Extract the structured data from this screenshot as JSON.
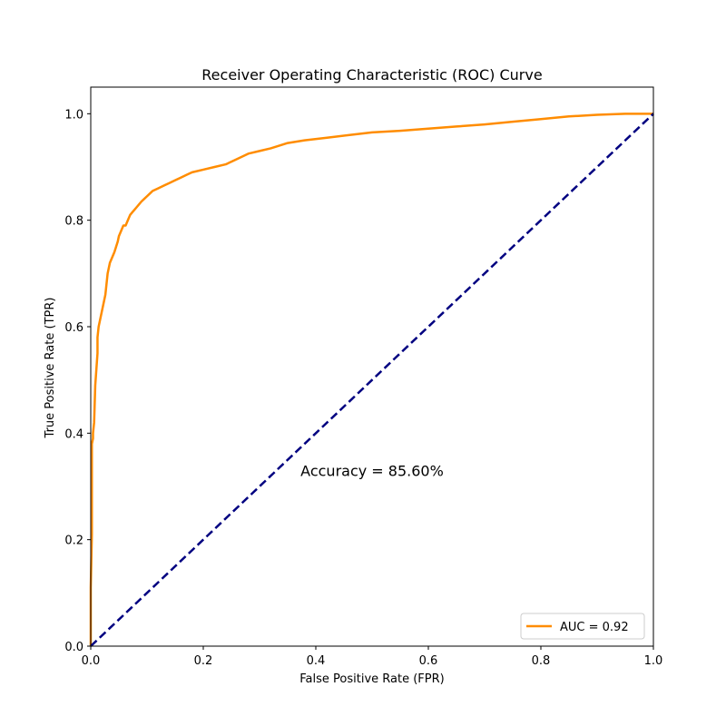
{
  "chart_data": {
    "type": "line",
    "title": "Receiver Operating Characteristic (ROC) Curve",
    "xlabel": "False Positive Rate (FPR)",
    "ylabel": "True Positive Rate (TPR)",
    "xlim": [
      0.0,
      1.0
    ],
    "ylim": [
      0.0,
      1.05
    ],
    "xticks": [
      "0.0",
      "0.2",
      "0.4",
      "0.6",
      "0.8",
      "1.0"
    ],
    "yticks": [
      "0.0",
      "0.2",
      "0.4",
      "0.6",
      "0.8",
      "1.0"
    ],
    "grid": false,
    "legend_position": "lower-right",
    "annotation": {
      "text": "Accuracy = 85.60%",
      "x": 0.5,
      "y": 0.33
    },
    "series": [
      {
        "name": "AUC = 0.92",
        "color": "#ff8c00",
        "style": "solid",
        "x": [
          0,
          0,
          0.002,
          0.002,
          0.004,
          0.004,
          0.006,
          0.008,
          0.01,
          0.012,
          0.012,
          0.014,
          0.016,
          0.018,
          0.02,
          0.022,
          0.024,
          0.026,
          0.03,
          0.034,
          0.038,
          0.042,
          0.045,
          0.048,
          0.05,
          0.054,
          0.058,
          0.062,
          0.066,
          0.07,
          0.074,
          0.078,
          0.082,
          0.086,
          0.09,
          0.095,
          0.1,
          0.105,
          0.11,
          0.12,
          0.13,
          0.14,
          0.15,
          0.16,
          0.17,
          0.18,
          0.2,
          0.22,
          0.24,
          0.26,
          0.28,
          0.3,
          0.32,
          0.35,
          0.38,
          0.42,
          0.46,
          0.5,
          0.55,
          0.6,
          0.65,
          0.7,
          0.75,
          0.8,
          0.85,
          0.9,
          0.95,
          1.0
        ],
        "y": [
          0.0,
          0.11,
          0.21,
          0.38,
          0.39,
          0.4,
          0.42,
          0.49,
          0.52,
          0.55,
          0.58,
          0.6,
          0.61,
          0.62,
          0.63,
          0.64,
          0.65,
          0.66,
          0.7,
          0.72,
          0.73,
          0.74,
          0.75,
          0.76,
          0.77,
          0.78,
          0.79,
          0.79,
          0.8,
          0.81,
          0.815,
          0.82,
          0.825,
          0.83,
          0.835,
          0.84,
          0.845,
          0.85,
          0.855,
          0.86,
          0.865,
          0.87,
          0.875,
          0.88,
          0.885,
          0.89,
          0.895,
          0.9,
          0.905,
          0.915,
          0.925,
          0.93,
          0.935,
          0.945,
          0.95,
          0.955,
          0.96,
          0.965,
          0.968,
          0.972,
          0.976,
          0.98,
          0.985,
          0.99,
          0.995,
          0.998,
          1.0,
          1.0
        ]
      },
      {
        "name": "",
        "color": "#000080",
        "style": "dashed",
        "x": [
          0.0,
          1.0
        ],
        "y": [
          0.0,
          1.0
        ]
      }
    ]
  }
}
